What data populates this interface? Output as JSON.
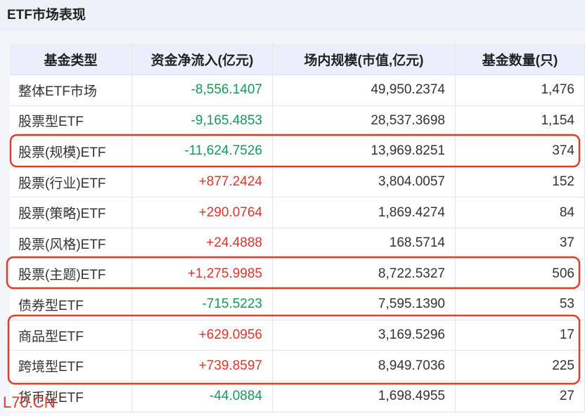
{
  "header": {
    "title": "ETF市场表现"
  },
  "table": {
    "columns": [
      "基金类型",
      "资金净流入(亿元)",
      "场内规模(市值,亿元)",
      "基金数量(只)"
    ],
    "rows": [
      [
        "整体ETF市场",
        "-8,556.1407",
        "49,950.2374",
        "1,476"
      ],
      [
        "股票型ETF",
        "-9,165.4853",
        "28,537.3698",
        "1,154"
      ],
      [
        "股票(规模)ETF",
        "-11,624.7526",
        "13,969.8251",
        "374"
      ],
      [
        "股票(行业)ETF",
        "+877.2424",
        "3,804.0057",
        "152"
      ],
      [
        "股票(策略)ETF",
        "+290.0764",
        "1,869.4274",
        "84"
      ],
      [
        "股票(风格)ETF",
        "+24.4888",
        "168.5714",
        "37"
      ],
      [
        "股票(主题)ETF",
        "+1,275.9985",
        "8,722.5327",
        "506"
      ],
      [
        "债券型ETF",
        "-715.5223",
        "7,595.1390",
        "53"
      ],
      [
        "商品型ETF",
        "+629.0956",
        "3,169.5296",
        "17"
      ],
      [
        "跨境型ETF",
        "+739.8597",
        "8,949.7036",
        "225"
      ],
      [
        "货币型ETF",
        "-44.0884",
        "1,698.4955",
        "27"
      ]
    ]
  },
  "watermark": "L70.CN"
}
